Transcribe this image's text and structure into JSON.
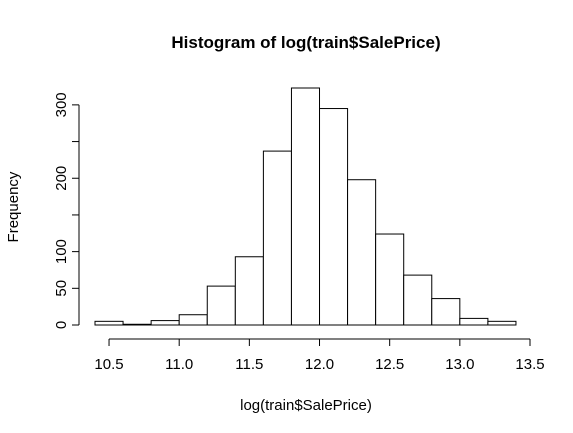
{
  "chart_data": {
    "type": "bar",
    "title": "Histogram of log(train$SalePrice)",
    "xlabel": "log(train$SalePrice)",
    "ylabel": "Frequency",
    "bin_edges": [
      10.4,
      10.6,
      10.8,
      11.0,
      11.2,
      11.4,
      11.6,
      11.8,
      12.0,
      12.2,
      12.4,
      12.6,
      12.8,
      13.0,
      13.2,
      13.4
    ],
    "values": [
      5,
      1,
      6,
      14,
      53,
      93,
      237,
      323,
      295,
      198,
      124,
      68,
      36,
      9,
      5
    ],
    "xlim": [
      10.4,
      13.5
    ],
    "ylim": [
      0,
      323
    ],
    "x_ticks": [
      10.5,
      11.0,
      11.5,
      12.0,
      12.5,
      13.0,
      13.5
    ],
    "x_tick_labels": [
      "10.5",
      "11.0",
      "11.5",
      "12.0",
      "12.5",
      "13.0",
      "13.5"
    ],
    "y_ticks": [
      0,
      50,
      100,
      150,
      200,
      250,
      300
    ],
    "y_tick_labels": [
      "0",
      "50",
      "100",
      "",
      "200",
      "",
      "300"
    ],
    "grid": false,
    "legend": "none"
  }
}
